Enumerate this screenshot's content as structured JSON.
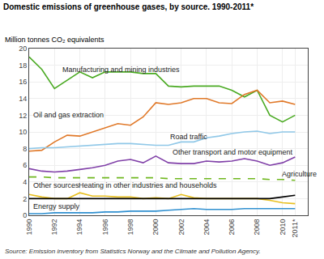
{
  "chart_data": {
    "type": "line",
    "title": "Domestic emissions of greenhouse gases, by source. 1990-2011*",
    "ylabel": "Million tonnes CO₂ equivalents",
    "source": "Source: Emission inventory from Statistics Norway and the Climate and Pollution Agency.",
    "x": [
      1990,
      1991,
      1992,
      1993,
      1994,
      1995,
      1996,
      1997,
      1998,
      1999,
      2000,
      2001,
      2002,
      2003,
      2004,
      2005,
      2006,
      2007,
      2008,
      2009,
      2010,
      2011
    ],
    "series": [
      {
        "name": "Manufacturing and mining industries",
        "color": "#4aaa22",
        "line_style": "solid",
        "values": [
          19.0,
          17.5,
          15.2,
          16.2,
          17.2,
          16.5,
          17.2,
          17.2,
          17.2,
          17.0,
          17.0,
          15.5,
          15.4,
          15.5,
          15.5,
          15.5,
          15.0,
          14.2,
          15.0,
          12.0,
          11.2,
          12.0
        ]
      },
      {
        "name": "Oil and gas extraction",
        "color": "#e07828",
        "line_style": "solid",
        "values": [
          7.7,
          7.8,
          8.8,
          9.6,
          9.5,
          10.0,
          10.5,
          11.0,
          10.8,
          11.8,
          13.5,
          13.3,
          13.5,
          14.0,
          14.0,
          13.5,
          13.4,
          14.5,
          15.0,
          13.5,
          13.7,
          13.3
        ]
      },
      {
        "name": "Road traffic",
        "color": "#90c8e8",
        "line_style": "solid",
        "values": [
          8.0,
          8.1,
          8.1,
          8.2,
          8.3,
          8.4,
          8.5,
          8.6,
          8.6,
          8.5,
          8.4,
          8.4,
          8.8,
          8.8,
          9.3,
          9.5,
          9.8,
          10.0,
          10.1,
          9.8,
          10.0,
          10.0
        ]
      },
      {
        "name": "Other transport and motor equipment",
        "color": "#8040a8",
        "line_style": "solid",
        "values": [
          5.6,
          5.3,
          5.2,
          5.3,
          5.5,
          5.7,
          6.0,
          6.5,
          6.7,
          6.3,
          7.1,
          6.3,
          6.2,
          6.2,
          6.5,
          6.4,
          6.5,
          6.8,
          6.5,
          6.0,
          6.3,
          7.0
        ]
      },
      {
        "name": "Agriculture",
        "color": "#70b820",
        "line_style": "dashed",
        "values": [
          4.6,
          4.6,
          4.5,
          4.5,
          4.5,
          4.5,
          4.5,
          4.5,
          4.5,
          4.5,
          4.5,
          4.4,
          4.4,
          4.4,
          4.4,
          4.4,
          4.4,
          4.4,
          4.4,
          4.3,
          4.3,
          4.2
        ]
      },
      {
        "name": "Heating in other industries and households",
        "color": "#e8c020",
        "line_style": "solid",
        "values": [
          2.5,
          2.2,
          2.0,
          2.0,
          2.7,
          2.3,
          2.3,
          2.2,
          2.2,
          2.0,
          2.1,
          2.0,
          2.5,
          2.1,
          2.0,
          2.0,
          2.0,
          2.0,
          2.0,
          1.8,
          1.5,
          1.4
        ]
      },
      {
        "name": "Other sources",
        "color": "#000000",
        "line_style": "solid",
        "values": [
          2.0,
          2.0,
          2.0,
          2.0,
          2.0,
          2.0,
          2.0,
          2.0,
          2.0,
          2.0,
          2.0,
          2.0,
          2.0,
          2.0,
          2.0,
          2.0,
          2.0,
          2.0,
          2.0,
          2.0,
          2.2,
          2.4
        ]
      },
      {
        "name": "Energy supply",
        "color": "#3090d0",
        "line_style": "solid",
        "values": [
          0.2,
          0.2,
          0.3,
          0.3,
          0.3,
          0.3,
          0.4,
          0.4,
          0.5,
          0.5,
          0.5,
          0.6,
          0.7,
          0.8,
          0.7,
          0.7,
          0.7,
          0.8,
          0.8,
          0.8,
          0.8,
          0.8
        ]
      }
    ],
    "annotations": [
      {
        "text": "Manufacturing and mining industries",
        "x": 1992.5,
        "y": 17.5
      },
      {
        "text": "Oil and gas extraction",
        "x": 1990.2,
        "y": 12.0
      },
      {
        "text": "Road traffic",
        "x": 2001.0,
        "y": 9.4
      },
      {
        "text": "Other transport and motor equipment",
        "x": 2001.2,
        "y": 7.6
      },
      {
        "text": "Agriculture",
        "x": 2009.8,
        "y": 5.0
      },
      {
        "text": "Heating in other industries and households",
        "x": 1993.8,
        "y": 3.55
      },
      {
        "text": "Other sources",
        "x": 1990.2,
        "y": 3.55
      },
      {
        "text": "Energy supply",
        "x": 1990.2,
        "y": 1.1
      }
    ],
    "xlim": [
      1990,
      2012
    ],
    "xticks": [
      1990,
      1992,
      1994,
      1996,
      1998,
      2000,
      2002,
      2004,
      2006,
      2008,
      2010,
      {
        "value": 2011,
        "label": "2011*"
      }
    ],
    "ylim": [
      0,
      20
    ],
    "yticks": [
      0,
      2,
      4,
      6,
      8,
      10,
      12,
      14,
      16,
      18,
      20
    ],
    "grid": true
  }
}
